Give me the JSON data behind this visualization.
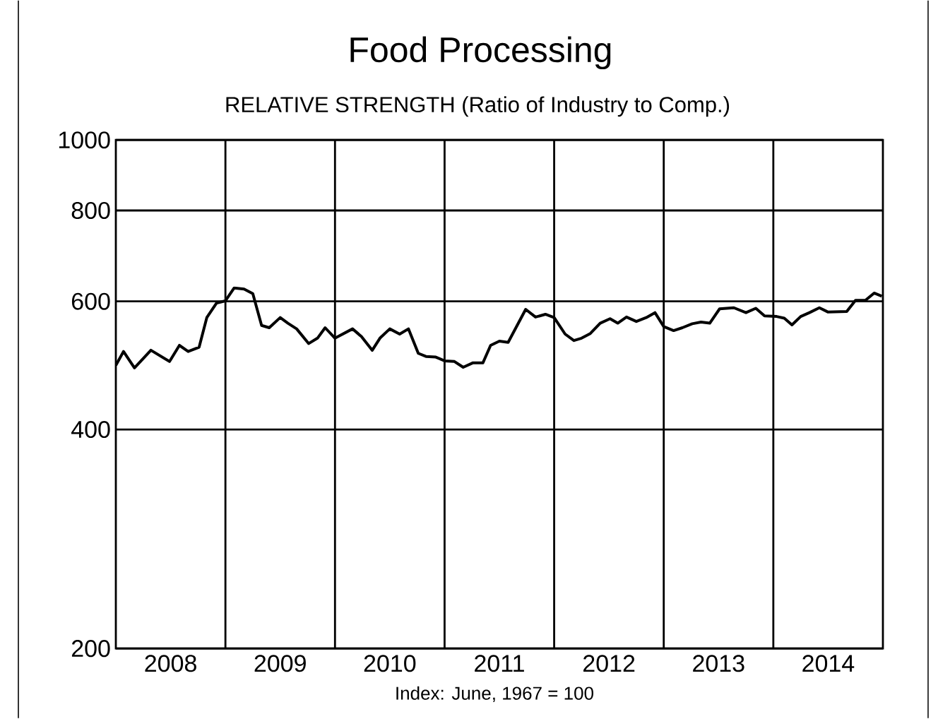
{
  "chart_data": {
    "type": "line",
    "title": "Food Processing",
    "subtitle": "RELATIVE STRENGTH (Ratio of Industry to Comp.)",
    "annotations": [
      "Index: June, 1967 = 100"
    ],
    "x": [
      2008.0,
      2008.07,
      2008.17,
      2008.32,
      2008.49,
      2008.58,
      2008.66,
      2008.76,
      2008.83,
      2008.92,
      2009.0,
      2009.08,
      2009.17,
      2009.25,
      2009.33,
      2009.4,
      2009.5,
      2009.57,
      2009.65,
      2009.76,
      2009.84,
      2009.91,
      2010.0,
      2010.16,
      2010.24,
      2010.34,
      2010.41,
      2010.5,
      2010.59,
      2010.67,
      2010.76,
      2010.83,
      2010.92,
      2011.0,
      2011.09,
      2011.17,
      2011.26,
      2011.35,
      2011.42,
      2011.5,
      2011.58,
      2011.74,
      2011.83,
      2011.92,
      2012.0,
      2012.1,
      2012.18,
      2012.25,
      2012.33,
      2012.42,
      2012.51,
      2012.58,
      2012.66,
      2012.75,
      2012.84,
      2012.92,
      2013.0,
      2013.09,
      2013.17,
      2013.26,
      2013.34,
      2013.42,
      2013.51,
      2013.64,
      2013.75,
      2013.84,
      2013.92,
      2014.03,
      2014.1,
      2014.17,
      2014.25,
      2014.33,
      2014.42,
      2014.5,
      2014.67,
      2014.75,
      2014.84,
      2014.92,
      2014.99
    ],
    "series": [
      {
        "color": "#000000",
        "values": [
          490,
          512,
          486,
          514,
          496,
          522,
          512,
          519,
          570,
          597,
          601,
          626,
          624,
          615,
          556,
          552,
          570,
          560,
          550,
          525,
          534,
          552,
          534,
          550,
          537,
          514,
          534,
          550,
          541,
          550,
          509,
          504,
          503,
          497,
          496,
          487,
          494,
          494,
          522,
          529,
          527,
          585,
          571,
          576,
          570,
          541,
          530,
          534,
          542,
          560,
          568,
          560,
          571,
          563,
          570,
          579,
          554,
          547,
          552,
          559,
          562,
          560,
          586,
          588,
          579,
          587,
          573,
          572,
          569,
          557,
          572,
          579,
          588,
          580,
          581,
          602,
          602,
          616,
          610
        ]
      }
    ],
    "xlim": [
      2008,
      2015
    ],
    "xticks": [
      {
        "value": 2008.5,
        "label": "2008"
      },
      {
        "value": 2009,
        "label": null
      },
      {
        "value": 2009.5,
        "label": "2009"
      },
      {
        "value": 2010,
        "label": null
      },
      {
        "value": 2010.5,
        "label": "2010"
      },
      {
        "value": 2011,
        "label": null
      },
      {
        "value": 2011.5,
        "label": "2011"
      },
      {
        "value": 2012,
        "label": null
      },
      {
        "value": 2012.5,
        "label": "2012"
      },
      {
        "value": 2013,
        "label": null
      },
      {
        "value": 2013.5,
        "label": "2013"
      },
      {
        "value": 2014,
        "label": null
      },
      {
        "value": 2014.5,
        "label": "2014"
      }
    ],
    "ylim": [
      200,
      1000
    ],
    "yticks": [
      200,
      400,
      600,
      800,
      1000
    ],
    "log": true,
    "grid": true,
    "marker": "none",
    "line_style": "solid"
  }
}
